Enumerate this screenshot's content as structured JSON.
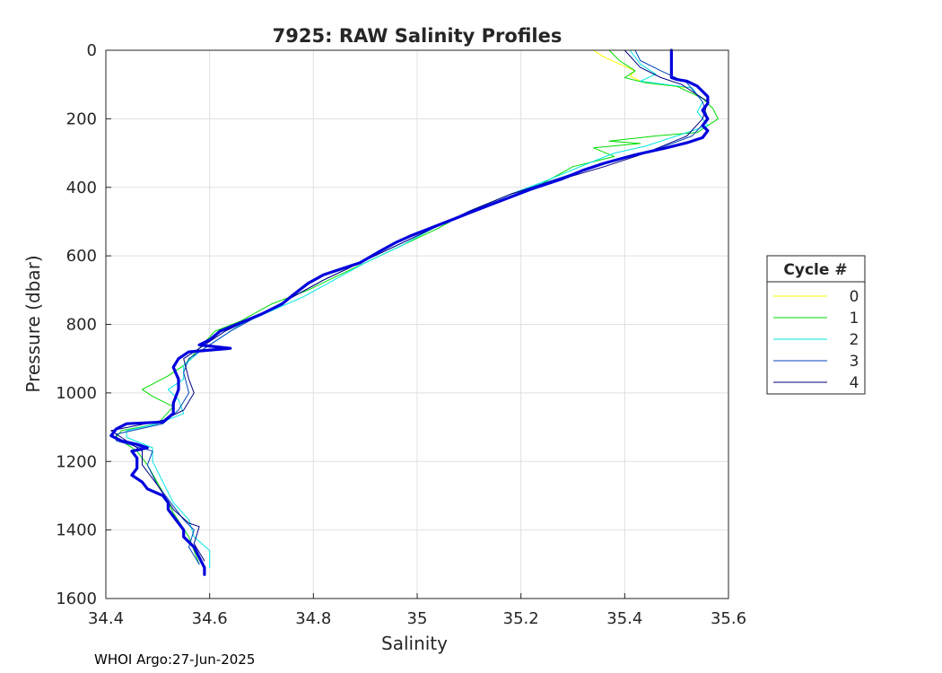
{
  "chart_data": {
    "type": "line",
    "title": "7925: RAW Salinity Profiles",
    "xlabel": "Salinity",
    "ylabel": "Pressure (dbar)",
    "xlim": [
      34.4,
      35.6
    ],
    "ylim": [
      0,
      1600
    ],
    "y_reversed": true,
    "x_ticks": [
      "34.4",
      "34.6",
      "34.8",
      "35",
      "35.2",
      "35.4",
      "35.6"
    ],
    "y_ticks": [
      "0",
      "200",
      "400",
      "600",
      "800",
      "1000",
      "1200",
      "1400",
      "1600"
    ],
    "grid": true,
    "legend": {
      "title": "Cycle #",
      "placement": "outside-right"
    },
    "series": [
      {
        "name": "0",
        "color": "#ffff00",
        "width": 1,
        "points": [
          [
            35.34,
            0
          ],
          [
            35.36,
            20
          ],
          [
            35.39,
            40
          ],
          [
            35.42,
            60
          ],
          [
            35.41,
            75
          ],
          [
            35.43,
            90
          ],
          [
            35.47,
            100
          ],
          [
            35.52,
            110
          ]
        ]
      },
      {
        "name": "1",
        "color": "#00dd00",
        "width": 1,
        "points": [
          [
            35.37,
            0
          ],
          [
            35.39,
            30
          ],
          [
            35.42,
            60
          ],
          [
            35.4,
            80
          ],
          [
            35.44,
            95
          ],
          [
            35.5,
            105
          ],
          [
            35.55,
            140
          ],
          [
            35.57,
            170
          ],
          [
            35.58,
            200
          ],
          [
            35.54,
            240
          ],
          [
            35.46,
            250
          ],
          [
            35.37,
            265
          ],
          [
            35.43,
            272
          ],
          [
            35.34,
            285
          ],
          [
            35.38,
            310
          ],
          [
            35.3,
            340
          ],
          [
            35.24,
            390
          ],
          [
            35.18,
            420
          ],
          [
            35.1,
            470
          ],
          [
            35.04,
            520
          ],
          [
            34.97,
            570
          ],
          [
            34.9,
            620
          ],
          [
            34.83,
            670
          ],
          [
            34.79,
            700
          ],
          [
            34.72,
            740
          ],
          [
            34.66,
            790
          ],
          [
            34.61,
            820
          ],
          [
            34.58,
            870
          ],
          [
            34.55,
            920
          ],
          [
            34.52,
            950
          ],
          [
            34.47,
            990
          ],
          [
            34.49,
            1010
          ],
          [
            34.53,
            1040
          ],
          [
            34.5,
            1090
          ],
          [
            34.43,
            1110
          ],
          [
            34.42,
            1130
          ],
          [
            34.46,
            1170
          ],
          [
            34.48,
            1210
          ],
          [
            34.51,
            1290
          ],
          [
            34.53,
            1350
          ],
          [
            34.56,
            1420
          ],
          [
            34.58,
            1500
          ]
        ]
      },
      {
        "name": "2",
        "color": "#00e5e5",
        "width": 1,
        "points": [
          [
            35.41,
            0
          ],
          [
            35.43,
            40
          ],
          [
            35.46,
            70
          ],
          [
            35.43,
            90
          ],
          [
            35.48,
            100
          ],
          [
            35.53,
            110
          ],
          [
            35.55,
            150
          ],
          [
            35.54,
            180
          ],
          [
            35.56,
            220
          ],
          [
            35.48,
            260
          ],
          [
            35.44,
            280
          ],
          [
            35.38,
            300
          ],
          [
            35.33,
            330
          ],
          [
            35.25,
            380
          ],
          [
            35.18,
            420
          ],
          [
            35.1,
            470
          ],
          [
            35.03,
            520
          ],
          [
            34.97,
            570
          ],
          [
            34.9,
            620
          ],
          [
            34.84,
            670
          ],
          [
            34.78,
            720
          ],
          [
            34.72,
            760
          ],
          [
            34.66,
            800
          ],
          [
            34.62,
            840
          ],
          [
            34.58,
            880
          ],
          [
            34.55,
            920
          ],
          [
            34.55,
            960
          ],
          [
            34.52,
            990
          ],
          [
            34.54,
            1020
          ],
          [
            34.55,
            1060
          ],
          [
            34.5,
            1090
          ],
          [
            34.44,
            1110
          ],
          [
            34.44,
            1130
          ],
          [
            34.49,
            1160
          ],
          [
            34.49,
            1200
          ],
          [
            34.51,
            1260
          ],
          [
            34.53,
            1320
          ],
          [
            34.56,
            1370
          ],
          [
            34.57,
            1420
          ],
          [
            34.6,
            1460
          ],
          [
            34.6,
            1510
          ]
        ]
      },
      {
        "name": "3",
        "color": "#0044bb",
        "width": 1,
        "points": [
          [
            35.42,
            0
          ],
          [
            35.43,
            30
          ],
          [
            35.47,
            60
          ],
          [
            35.52,
            95
          ],
          [
            35.55,
            150
          ],
          [
            35.56,
            200
          ],
          [
            35.53,
            250
          ],
          [
            35.46,
            290
          ],
          [
            35.36,
            330
          ],
          [
            35.26,
            380
          ],
          [
            35.18,
            420
          ],
          [
            35.1,
            470
          ],
          [
            35.03,
            520
          ],
          [
            34.96,
            570
          ],
          [
            34.89,
            620
          ],
          [
            34.82,
            670
          ],
          [
            34.76,
            720
          ],
          [
            34.7,
            770
          ],
          [
            34.64,
            820
          ],
          [
            34.6,
            860
          ],
          [
            34.56,
            900
          ],
          [
            34.55,
            940
          ],
          [
            34.56,
            1000
          ],
          [
            34.54,
            1050
          ],
          [
            34.51,
            1090
          ],
          [
            34.42,
            1120
          ],
          [
            34.42,
            1140
          ],
          [
            34.49,
            1170
          ],
          [
            34.48,
            1210
          ],
          [
            34.5,
            1270
          ],
          [
            34.53,
            1330
          ],
          [
            34.55,
            1370
          ],
          [
            34.57,
            1400
          ],
          [
            34.56,
            1450
          ],
          [
            34.58,
            1500
          ]
        ]
      },
      {
        "name": "4",
        "color": "#000080",
        "width": 1,
        "points": [
          [
            35.4,
            0
          ],
          [
            35.43,
            50
          ],
          [
            35.47,
            80
          ],
          [
            35.51,
            100
          ],
          [
            35.56,
            150
          ],
          [
            35.55,
            200
          ],
          [
            35.52,
            250
          ],
          [
            35.44,
            300
          ],
          [
            35.36,
            340
          ],
          [
            35.27,
            380
          ],
          [
            35.18,
            420
          ],
          [
            35.1,
            470
          ],
          [
            35.03,
            520
          ],
          [
            34.96,
            570
          ],
          [
            34.89,
            620
          ],
          [
            34.82,
            670
          ],
          [
            34.76,
            720
          ],
          [
            34.7,
            770
          ],
          [
            34.63,
            820
          ],
          [
            34.59,
            860
          ],
          [
            34.55,
            900
          ],
          [
            34.56,
            960
          ],
          [
            34.57,
            1000
          ],
          [
            34.55,
            1050
          ],
          [
            34.51,
            1080
          ],
          [
            34.41,
            1110
          ],
          [
            34.43,
            1130
          ],
          [
            34.47,
            1170
          ],
          [
            34.47,
            1210
          ],
          [
            34.5,
            1270
          ],
          [
            34.53,
            1340
          ],
          [
            34.56,
            1380
          ],
          [
            34.58,
            1390
          ],
          [
            34.57,
            1440
          ],
          [
            34.59,
            1490
          ]
        ]
      },
      {
        "name": "",
        "color": "#0000dd",
        "width": 3.2,
        "points": [
          [
            35.49,
            0
          ],
          [
            35.49,
            20
          ],
          [
            35.49,
            45
          ],
          [
            35.49,
            80
          ],
          [
            35.5,
            85
          ],
          [
            35.52,
            90
          ],
          [
            35.54,
            105
          ],
          [
            35.55,
            120
          ],
          [
            35.56,
            135
          ],
          [
            35.56,
            155
          ],
          [
            35.55,
            175
          ],
          [
            35.56,
            200
          ],
          [
            35.55,
            220
          ],
          [
            35.56,
            235
          ],
          [
            35.55,
            255
          ],
          [
            35.52,
            270
          ],
          [
            35.48,
            285
          ],
          [
            35.42,
            305
          ],
          [
            35.36,
            330
          ],
          [
            35.32,
            350
          ],
          [
            35.28,
            375
          ],
          [
            35.22,
            405
          ],
          [
            35.16,
            440
          ],
          [
            35.1,
            475
          ],
          [
            35.05,
            505
          ],
          [
            34.99,
            540
          ],
          [
            34.96,
            560
          ],
          [
            34.93,
            585
          ],
          [
            34.89,
            620
          ],
          [
            34.86,
            635
          ],
          [
            34.82,
            655
          ],
          [
            34.79,
            680
          ],
          [
            34.76,
            715
          ],
          [
            34.74,
            740
          ],
          [
            34.7,
            770
          ],
          [
            34.66,
            795
          ],
          [
            34.62,
            820
          ],
          [
            34.6,
            845
          ],
          [
            34.58,
            860
          ],
          [
            34.64,
            870
          ],
          [
            34.56,
            880
          ],
          [
            34.54,
            900
          ],
          [
            34.53,
            925
          ],
          [
            34.54,
            960
          ],
          [
            34.54,
            990
          ],
          [
            34.53,
            1030
          ],
          [
            34.53,
            1060
          ],
          [
            34.51,
            1085
          ],
          [
            34.44,
            1090
          ],
          [
            34.42,
            1105
          ],
          [
            34.41,
            1125
          ],
          [
            34.43,
            1140
          ],
          [
            34.46,
            1150
          ],
          [
            34.48,
            1160
          ],
          [
            34.45,
            1170
          ],
          [
            34.46,
            1190
          ],
          [
            34.46,
            1220
          ],
          [
            34.45,
            1240
          ],
          [
            34.47,
            1260
          ],
          [
            34.48,
            1280
          ],
          [
            34.51,
            1300
          ],
          [
            34.52,
            1320
          ],
          [
            34.52,
            1340
          ],
          [
            34.53,
            1360
          ],
          [
            34.54,
            1380
          ],
          [
            34.55,
            1400
          ],
          [
            34.55,
            1420
          ],
          [
            34.57,
            1450
          ],
          [
            34.58,
            1480
          ],
          [
            34.59,
            1510
          ],
          [
            34.59,
            1530
          ]
        ]
      }
    ]
  },
  "footer": {
    "text": "WHOI Argo:27-Jun-2025"
  },
  "colors": {
    "axis": "#262626",
    "grid": "#e0e0e0",
    "background": "#ffffff"
  }
}
